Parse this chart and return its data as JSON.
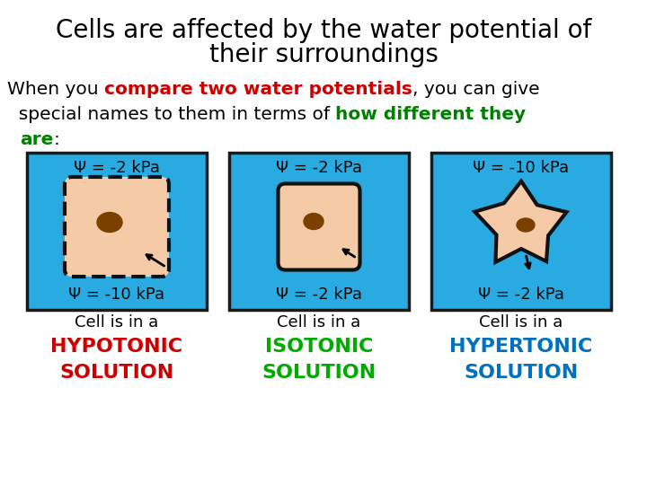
{
  "title_line1": "Cells are affected by the water potential of",
  "title_line2": "their surroundings",
  "title_fontsize": 20,
  "body_fontsize": 14.5,
  "box_color": "#29ABE2",
  "box_border_color": "#1a1a1a",
  "boxes": [
    {
      "label_top": "Ψ = -2 kPa",
      "label_bot": "Ψ = -10 kPa",
      "cell_type": "hypotonic",
      "caption_line1": "Cell is in a",
      "caption_line2": "HYPOTONIC",
      "caption_line3": "SOLUTION",
      "caption_color": "#cc0000"
    },
    {
      "label_top": "Ψ = -2 kPa",
      "label_bot": "Ψ = -2 kPa",
      "cell_type": "isotonic",
      "caption_line1": "Cell is in a",
      "caption_line2": "ISOTONIC",
      "caption_line3": "SOLUTION",
      "caption_color": "#00aa00"
    },
    {
      "label_top": "Ψ = -10 kPa",
      "label_bot": "Ψ = -2 kPa",
      "cell_type": "hypertonic",
      "caption_line1": "Cell is in a",
      "caption_line2": "HYPERTONIC",
      "caption_line3": "SOLUTION",
      "caption_color": "#0070C0"
    }
  ],
  "background_color": "#ffffff",
  "cell_fill": "#F5CBA7",
  "nucleus_fill": "#7B3F00"
}
